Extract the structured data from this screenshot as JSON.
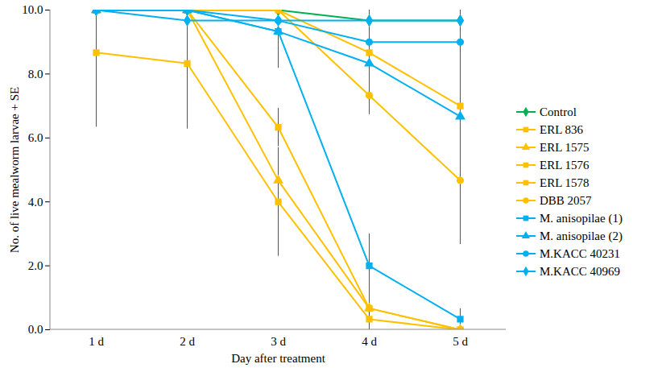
{
  "chart_data": {
    "type": "line",
    "x_label": "Day after treatment",
    "y_label": "No. of live mealworm larvae + SE",
    "categories": [
      "1 d",
      "2 d",
      "3 d",
      "4 d",
      "5 d"
    ],
    "ylim": [
      0,
      10
    ],
    "yticks": [
      {
        "value": 0,
        "label": "0.0"
      },
      {
        "value": 2,
        "label": "2.0"
      },
      {
        "value": 4,
        "label": "4.0"
      },
      {
        "value": 6,
        "label": "6.0"
      },
      {
        "value": 8,
        "label": "8.0"
      },
      {
        "value": 10,
        "label": "10.0"
      }
    ],
    "grid": false,
    "legend": "right",
    "series": [
      {
        "name": "Control",
        "color": "#00B050",
        "marker": "diamond",
        "values": [
          10,
          10,
          10,
          9.67,
          9.67
        ],
        "se": [
          0,
          0,
          0,
          0.33,
          0.33
        ]
      },
      {
        "name": "ERL 836",
        "color": "#FFC000",
        "marker": "square",
        "values": [
          8.67,
          8.33,
          4.0,
          0.33,
          0
        ],
        "se": [
          2.33,
          2.05,
          1.7,
          0.33,
          0
        ]
      },
      {
        "name": "ERL 1575",
        "color": "#FFC000",
        "marker": "triangle",
        "values": [
          10,
          10,
          4.67,
          0.67,
          0
        ],
        "se": [
          0,
          0,
          1.0,
          0.67,
          0
        ]
      },
      {
        "name": "ERL 1576",
        "color": "#FFC000",
        "marker": "square",
        "values": [
          10,
          10,
          6.33,
          0.67,
          0
        ],
        "se": [
          0,
          0,
          0.6,
          0.67,
          0
        ]
      },
      {
        "name": "ERL 1578",
        "color": "#FFC000",
        "marker": "square",
        "values": [
          10,
          10,
          10,
          8.67,
          7.0
        ],
        "se": [
          0,
          0,
          0,
          0.6,
          1.0
        ]
      },
      {
        "name": "DBB 2057",
        "color": "#FFC000",
        "marker": "circle",
        "values": [
          10,
          10,
          10,
          7.33,
          4.67
        ],
        "se": [
          0,
          0,
          0,
          0.6,
          2.0
        ]
      },
      {
        "name": "M. anisopilae (1)",
        "color": "#00B0F0",
        "marker": "square",
        "values": [
          10,
          10,
          9.33,
          2.0,
          0.33
        ],
        "se": [
          0,
          0,
          1.15,
          1.0,
          0.33
        ]
      },
      {
        "name": "M. anisopilae (2)",
        "color": "#00B0F0",
        "marker": "triangle",
        "values": [
          10,
          10,
          9.33,
          8.33,
          6.67
        ],
        "se": [
          0,
          0,
          0.67,
          1.2,
          2.3
        ]
      },
      {
        "name": "M.KACC 40231",
        "color": "#00B0F0",
        "marker": "circle",
        "values": [
          10,
          10,
          9.67,
          9.0,
          9.0
        ],
        "se": [
          0,
          0,
          0.33,
          1.0,
          1.0
        ]
      },
      {
        "name": "M.KACC 40969",
        "color": "#00B0F0",
        "marker": "diamond",
        "values": [
          10,
          9.67,
          9.67,
          9.67,
          9.67
        ],
        "se": [
          0,
          0.33,
          0.33,
          0.33,
          0.33
        ]
      }
    ]
  }
}
